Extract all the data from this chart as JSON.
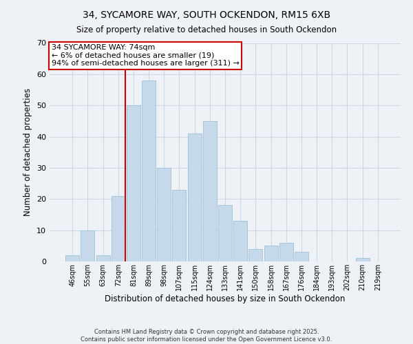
{
  "title_line1": "34, SYCAMORE WAY, SOUTH OCKENDON, RM15 6XB",
  "title_line2": "Size of property relative to detached houses in South Ockendon",
  "xlabel": "Distribution of detached houses by size in South Ockendon",
  "ylabel": "Number of detached properties",
  "categories": [
    "46sqm",
    "55sqm",
    "63sqm",
    "72sqm",
    "81sqm",
    "89sqm",
    "98sqm",
    "107sqm",
    "115sqm",
    "124sqm",
    "133sqm",
    "141sqm",
    "150sqm",
    "158sqm",
    "167sqm",
    "176sqm",
    "184sqm",
    "193sqm",
    "202sqm",
    "210sqm",
    "219sqm"
  ],
  "values": [
    2,
    10,
    2,
    21,
    50,
    58,
    30,
    23,
    41,
    45,
    18,
    13,
    4,
    5,
    6,
    3,
    0,
    0,
    0,
    1,
    0
  ],
  "bar_color": "#c6d9ea",
  "bar_edge_color": "#a8c4d8",
  "vline_x_index": 3,
  "annotation_text_line1": "34 SYCAMORE WAY: 74sqm",
  "annotation_text_line2": "← 6% of detached houses are smaller (19)",
  "annotation_text_line3": "94% of semi-detached houses are larger (311) →",
  "vline_color": "#cc0000",
  "annotation_box_facecolor": "#ffffff",
  "annotation_box_edgecolor": "#cc0000",
  "ylim": [
    0,
    70
  ],
  "yticks": [
    0,
    10,
    20,
    30,
    40,
    50,
    60,
    70
  ],
  "grid_color": "#c8d8e8",
  "background_color": "#eef2f6",
  "footer_line1": "Contains HM Land Registry data © Crown copyright and database right 2025.",
  "footer_line2": "Contains public sector information licensed under the Open Government Licence v3.0."
}
